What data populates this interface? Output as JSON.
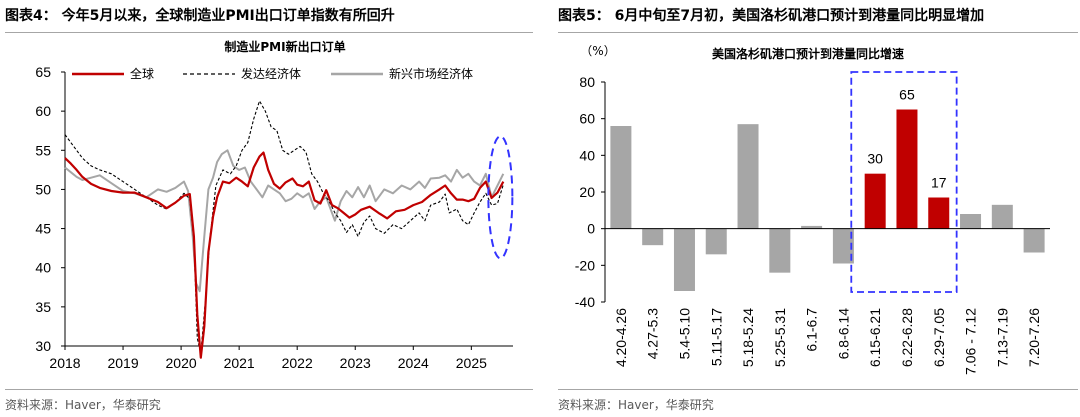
{
  "left": {
    "header": "图表4：  今年5月以来，全球制造业PMI出口订单指数有所回升",
    "source": "资料来源：Haver，华泰研究"
  },
  "right": {
    "header": "图表5：  6月中旬至7月初，美国洛杉矶港口预计到港量同比明显增加",
    "source": "资料来源：Haver，华泰研究"
  },
  "chart_data": [
    {
      "type": "line",
      "title": "制造业PMI新出口订单",
      "ylim": [
        30,
        65
      ],
      "yticks": [
        30,
        35,
        40,
        45,
        50,
        55,
        60,
        65
      ],
      "xlim": [
        2018.0,
        2025.58
      ],
      "xticks": [
        "2018",
        "2019",
        "2020",
        "2021",
        "2022",
        "2023",
        "2024",
        "2025"
      ],
      "grid": false,
      "legend": "top",
      "series": [
        {
          "name": "全球",
          "color": "#c00000",
          "style": "solid",
          "points": [
            [
              2018.0,
              54.0
            ],
            [
              2018.1,
              53.3
            ],
            [
              2018.2,
              52.5
            ],
            [
              2018.3,
              51.6
            ],
            [
              2018.45,
              50.7
            ],
            [
              2018.6,
              50.2
            ],
            [
              2018.8,
              49.8
            ],
            [
              2019.0,
              49.6
            ],
            [
              2019.2,
              49.6
            ],
            [
              2019.4,
              49.0
            ],
            [
              2019.6,
              48.4
            ],
            [
              2019.75,
              47.6
            ],
            [
              2019.9,
              48.3
            ],
            [
              2020.05,
              49.2
            ],
            [
              2020.15,
              49.4
            ],
            [
              2020.22,
              44.0
            ],
            [
              2020.28,
              34.0
            ],
            [
              2020.34,
              28.5
            ],
            [
              2020.4,
              32.5
            ],
            [
              2020.47,
              42.0
            ],
            [
              2020.55,
              46.5
            ],
            [
              2020.62,
              49.0
            ],
            [
              2020.72,
              51.0
            ],
            [
              2020.83,
              50.8
            ],
            [
              2020.95,
              51.5
            ],
            [
              2021.05,
              51.0
            ],
            [
              2021.15,
              50.4
            ],
            [
              2021.25,
              52.8
            ],
            [
              2021.35,
              54.2
            ],
            [
              2021.42,
              54.7
            ],
            [
              2021.5,
              52.5
            ],
            [
              2021.6,
              50.7
            ],
            [
              2021.7,
              50.1
            ],
            [
              2021.8,
              50.9
            ],
            [
              2021.92,
              51.4
            ],
            [
              2022.0,
              50.6
            ],
            [
              2022.1,
              50.4
            ],
            [
              2022.2,
              51.0
            ],
            [
              2022.3,
              48.6
            ],
            [
              2022.4,
              48.2
            ],
            [
              2022.5,
              49.9
            ],
            [
              2022.6,
              48.0
            ],
            [
              2022.7,
              47.6
            ],
            [
              2022.8,
              47.0
            ],
            [
              2022.9,
              46.4
            ],
            [
              2023.0,
              46.8
            ],
            [
              2023.1,
              47.4
            ],
            [
              2023.25,
              47.8
            ],
            [
              2023.4,
              47.0
            ],
            [
              2023.55,
              46.3
            ],
            [
              2023.7,
              47.2
            ],
            [
              2023.85,
              47.4
            ],
            [
              2024.0,
              48.0
            ],
            [
              2024.15,
              48.4
            ],
            [
              2024.3,
              49.3
            ],
            [
              2024.45,
              50.0
            ],
            [
              2024.55,
              50.5
            ],
            [
              2024.65,
              49.5
            ],
            [
              2024.75,
              48.7
            ],
            [
              2024.85,
              48.7
            ],
            [
              2024.95,
              48.5
            ],
            [
              2025.05,
              48.8
            ],
            [
              2025.15,
              50.2
            ],
            [
              2025.25,
              51.0
            ],
            [
              2025.35,
              48.9
            ],
            [
              2025.45,
              49.6
            ],
            [
              2025.55,
              51.0
            ]
          ]
        },
        {
          "name": "发达经济体",
          "color": "#000000",
          "style": "dashed",
          "points": [
            [
              2018.0,
              57.0
            ],
            [
              2018.1,
              56.0
            ],
            [
              2018.2,
              55.0
            ],
            [
              2018.3,
              54.0
            ],
            [
              2018.45,
              53.0
            ],
            [
              2018.6,
              52.5
            ],
            [
              2018.8,
              52.0
            ],
            [
              2019.0,
              51.0
            ],
            [
              2019.2,
              50.0
            ],
            [
              2019.4,
              49.0
            ],
            [
              2019.6,
              48.0
            ],
            [
              2019.75,
              47.5
            ],
            [
              2019.9,
              48.3
            ],
            [
              2020.05,
              49.5
            ],
            [
              2020.15,
              48.8
            ],
            [
              2020.22,
              43.5
            ],
            [
              2020.28,
              31.0
            ],
            [
              2020.34,
              29.0
            ],
            [
              2020.42,
              36.0
            ],
            [
              2020.5,
              44.0
            ],
            [
              2020.6,
              50.5
            ],
            [
              2020.72,
              52.5
            ],
            [
              2020.85,
              52.0
            ],
            [
              2020.95,
              53.0
            ],
            [
              2021.05,
              55.0
            ],
            [
              2021.15,
              56.0
            ],
            [
              2021.25,
              59.0
            ],
            [
              2021.35,
              61.3
            ],
            [
              2021.45,
              60.0
            ],
            [
              2021.55,
              58.0
            ],
            [
              2021.65,
              57.5
            ],
            [
              2021.75,
              55.0
            ],
            [
              2021.85,
              54.5
            ],
            [
              2021.95,
              55.0
            ],
            [
              2022.05,
              55.5
            ],
            [
              2022.15,
              54.8
            ],
            [
              2022.25,
              52.0
            ],
            [
              2022.35,
              51.0
            ],
            [
              2022.45,
              49.5
            ],
            [
              2022.55,
              48.5
            ],
            [
              2022.65,
              47.0
            ],
            [
              2022.75,
              46.0
            ],
            [
              2022.85,
              44.5
            ],
            [
              2022.95,
              45.5
            ],
            [
              2023.05,
              44.0
            ],
            [
              2023.15,
              45.8
            ],
            [
              2023.25,
              46.6
            ],
            [
              2023.35,
              45.0
            ],
            [
              2023.5,
              44.4
            ],
            [
              2023.65,
              45.5
            ],
            [
              2023.8,
              45.0
            ],
            [
              2023.95,
              46.0
            ],
            [
              2024.1,
              47.0
            ],
            [
              2024.2,
              46.0
            ],
            [
              2024.3,
              48.0
            ],
            [
              2024.45,
              48.4
            ],
            [
              2024.55,
              49.4
            ],
            [
              2024.62,
              47.0
            ],
            [
              2024.75,
              47.5
            ],
            [
              2024.85,
              46.0
            ],
            [
              2024.95,
              45.5
            ],
            [
              2025.05,
              47.0
            ],
            [
              2025.15,
              48.4
            ],
            [
              2025.25,
              49.5
            ],
            [
              2025.35,
              48.0
            ],
            [
              2025.45,
              48.2
            ],
            [
              2025.55,
              50.6
            ]
          ]
        },
        {
          "name": "新兴市场经济体",
          "color": "#a6a6a6",
          "style": "solid",
          "points": [
            [
              2018.0,
              52.8
            ],
            [
              2018.1,
              52.2
            ],
            [
              2018.2,
              51.6
            ],
            [
              2018.3,
              51.2
            ],
            [
              2018.45,
              51.5
            ],
            [
              2018.6,
              51.8
            ],
            [
              2018.8,
              50.8
            ],
            [
              2019.0,
              49.8
            ],
            [
              2019.2,
              49.5
            ],
            [
              2019.4,
              49.0
            ],
            [
              2019.6,
              50.0
            ],
            [
              2019.75,
              49.7
            ],
            [
              2019.9,
              50.2
            ],
            [
              2020.05,
              51.0
            ],
            [
              2020.12,
              49.8
            ],
            [
              2020.2,
              44.0
            ],
            [
              2020.26,
              38.0
            ],
            [
              2020.32,
              37.0
            ],
            [
              2020.4,
              44.0
            ],
            [
              2020.47,
              50.0
            ],
            [
              2020.55,
              51.5
            ],
            [
              2020.62,
              53.5
            ],
            [
              2020.7,
              54.5
            ],
            [
              2020.8,
              55.0
            ],
            [
              2020.9,
              53.0
            ],
            [
              2021.0,
              52.5
            ],
            [
              2021.1,
              52.8
            ],
            [
              2021.2,
              51.0
            ],
            [
              2021.3,
              50.0
            ],
            [
              2021.4,
              49.0
            ],
            [
              2021.5,
              50.5
            ],
            [
              2021.6,
              50.0
            ],
            [
              2021.7,
              49.5
            ],
            [
              2021.8,
              48.5
            ],
            [
              2021.9,
              48.8
            ],
            [
              2022.0,
              49.5
            ],
            [
              2022.1,
              49.0
            ],
            [
              2022.2,
              49.5
            ],
            [
              2022.3,
              47.5
            ],
            [
              2022.4,
              48.5
            ],
            [
              2022.5,
              49.0
            ],
            [
              2022.6,
              47.0
            ],
            [
              2022.65,
              46.0
            ],
            [
              2022.75,
              48.5
            ],
            [
              2022.85,
              49.8
            ],
            [
              2022.95,
              49.0
            ],
            [
              2023.05,
              50.3
            ],
            [
              2023.15,
              49.0
            ],
            [
              2023.25,
              50.5
            ],
            [
              2023.35,
              48.5
            ],
            [
              2023.5,
              50.0
            ],
            [
              2023.65,
              49.5
            ],
            [
              2023.8,
              50.5
            ],
            [
              2023.95,
              50.0
            ],
            [
              2024.1,
              51.0
            ],
            [
              2024.2,
              50.2
            ],
            [
              2024.3,
              51.4
            ],
            [
              2024.45,
              51.5
            ],
            [
              2024.55,
              51.8
            ],
            [
              2024.65,
              51.0
            ],
            [
              2024.75,
              52.5
            ],
            [
              2024.85,
              51.5
            ],
            [
              2024.95,
              52.0
            ],
            [
              2025.05,
              51.0
            ],
            [
              2025.15,
              50.5
            ],
            [
              2025.25,
              52.0
            ],
            [
              2025.35,
              49.0
            ],
            [
              2025.45,
              50.5
            ],
            [
              2025.55,
              52.0
            ]
          ]
        }
      ]
    },
    {
      "type": "bar",
      "title": "美国洛杉矶港口预计到港量同比增速",
      "ylabel": "（%）",
      "ylim": [
        -40,
        80
      ],
      "yticks": [
        -40,
        -20,
        0,
        20,
        40,
        60,
        80
      ],
      "grid": false,
      "categories": [
        "4.20-4.26",
        "4.27-5.3",
        "5.4-5.10",
        "5.11-5.17",
        "5.18-5.24",
        "5.25-5.31",
        "6.1-6.7",
        "6.8-6.14",
        "6.15-6.21",
        "6.22-6.28",
        "6.29-7.05",
        "7.06 - 7.12",
        "7.13-7.19",
        "7.20-7.26"
      ],
      "values": [
        56,
        -9,
        -34,
        -14,
        57,
        -24,
        1.5,
        -19,
        30,
        65,
        17,
        8,
        13,
        -13
      ],
      "colors": [
        "#a6a6a6",
        "#a6a6a6",
        "#a6a6a6",
        "#a6a6a6",
        "#a6a6a6",
        "#a6a6a6",
        "#a6a6a6",
        "#a6a6a6",
        "#c00000",
        "#c00000",
        "#c00000",
        "#a6a6a6",
        "#a6a6a6",
        "#a6a6a6"
      ],
      "data_labels": [
        "",
        "",
        "",
        "",
        "",
        "",
        "",
        "",
        "30",
        "65",
        "17",
        "",
        "",
        ""
      ]
    }
  ]
}
